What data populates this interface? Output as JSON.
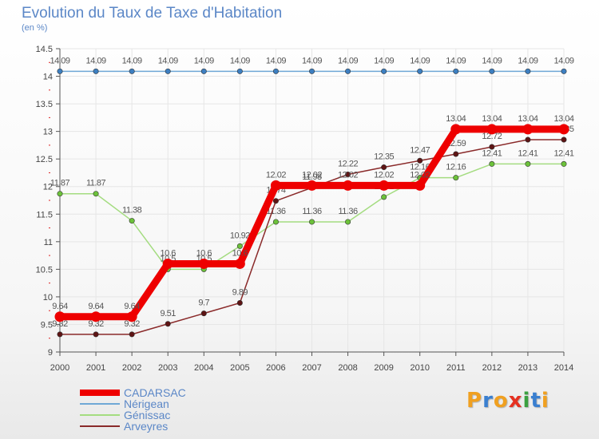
{
  "title": "Evolution du Taux de Taxe d'Habitation",
  "subtitle": "(en %)",
  "logo": {
    "text": "Proxiti",
    "letters": [
      {
        "ch": "P",
        "color": "#f0a020"
      },
      {
        "ch": "r",
        "color": "#3a7fd0"
      },
      {
        "ch": "o",
        "color": "#f0a020"
      },
      {
        "ch": "x",
        "color": "#e53020"
      },
      {
        "ch": "i",
        "color": "#3aa040"
      },
      {
        "ch": "t",
        "color": "#3a7fd0"
      },
      {
        "ch": "i",
        "color": "#f0a020"
      }
    ]
  },
  "chart_data": {
    "type": "line",
    "title": "Evolution du Taux de Taxe d'Habitation",
    "ylabel": "(en %)",
    "xlabel": "",
    "ylim": [
      9,
      14.5
    ],
    "yticks": [
      "9",
      "9.5",
      "10",
      "10.5",
      "11",
      "11.5",
      "12",
      "12.5",
      "13",
      "13.5",
      "14",
      "14.5"
    ],
    "x": [
      "2000",
      "2001",
      "2002",
      "2003",
      "2004",
      "2005",
      "2006",
      "2007",
      "2008",
      "2009",
      "2010",
      "2011",
      "2012",
      "2013",
      "2014"
    ],
    "legend_position": "bottom-left",
    "series": [
      {
        "name": "Nérigean",
        "color": "#6fa8d6",
        "marker": "#3d7fc1",
        "width": 1.5,
        "values": [
          14.09,
          14.09,
          14.09,
          14.09,
          14.09,
          14.09,
          14.09,
          14.09,
          14.09,
          14.09,
          14.09,
          14.09,
          14.09,
          14.09,
          14.09
        ],
        "labels": [
          "14.09",
          "14.09",
          "14.09",
          "14.09",
          "14.09",
          "14.09",
          "14.09",
          "14.09",
          "14.09",
          "14.09",
          "14.09",
          "14.09",
          "14.09",
          "14.09",
          "14.09"
        ]
      },
      {
        "name": "Génissac",
        "color": "#a4dc80",
        "marker": "#6cc23a",
        "width": 1.5,
        "values": [
          11.87,
          11.87,
          11.38,
          10.5,
          10.5,
          10.92,
          11.36,
          11.36,
          11.36,
          11.81,
          12.16,
          12.16,
          12.41,
          12.41,
          12.41
        ],
        "labels": [
          "11.87",
          "11.87",
          "11.38",
          "10.5",
          "10.5",
          "10.92",
          "11.36",
          "11.36",
          "11.36",
          "11.81",
          "12.16",
          "12.16",
          "12.41",
          "12.41",
          "12.41"
        ]
      },
      {
        "name": "Arveyres",
        "color": "#8a2a2a",
        "marker": "#5e1414",
        "width": 1.5,
        "values": [
          9.32,
          9.32,
          9.32,
          9.51,
          9.7,
          9.89,
          11.74,
          11.98,
          12.22,
          12.35,
          12.47,
          12.59,
          12.72,
          12.85,
          12.85
        ],
        "labels": [
          "9.32",
          "9.32",
          "9.32",
          "9.51",
          "9.7",
          "9.89",
          "11.74",
          "11.98",
          "12.22",
          "12.35",
          "12.47",
          "12.59",
          "12.72",
          "12.85",
          "12.85"
        ]
      },
      {
        "name": "CADARSAC",
        "color": "#ee0000",
        "marker": "#ee0000",
        "width": 9,
        "values": [
          9.64,
          9.64,
          9.64,
          10.6,
          10.6,
          10.6,
          12.02,
          12.02,
          12.02,
          12.02,
          12.02,
          13.04,
          13.04,
          13.04,
          13.04
        ],
        "labels": [
          "9.64",
          "9.64",
          "9.64",
          "10.6",
          "10.6",
          "10.6",
          "12.02",
          "12.02",
          "12.02",
          "12.02",
          "12.02",
          "13.04",
          "13.04",
          "13.04",
          "13.04"
        ]
      }
    ]
  },
  "legend": [
    {
      "name": "CADARSAC",
      "color": "#ee0000",
      "thick": true
    },
    {
      "name": "Nérigean",
      "color": "#6fa8d6",
      "thick": false
    },
    {
      "name": "Génissac",
      "color": "#a4dc80",
      "thick": false
    },
    {
      "name": "Arveyres",
      "color": "#8a2a2a",
      "thick": false
    }
  ]
}
